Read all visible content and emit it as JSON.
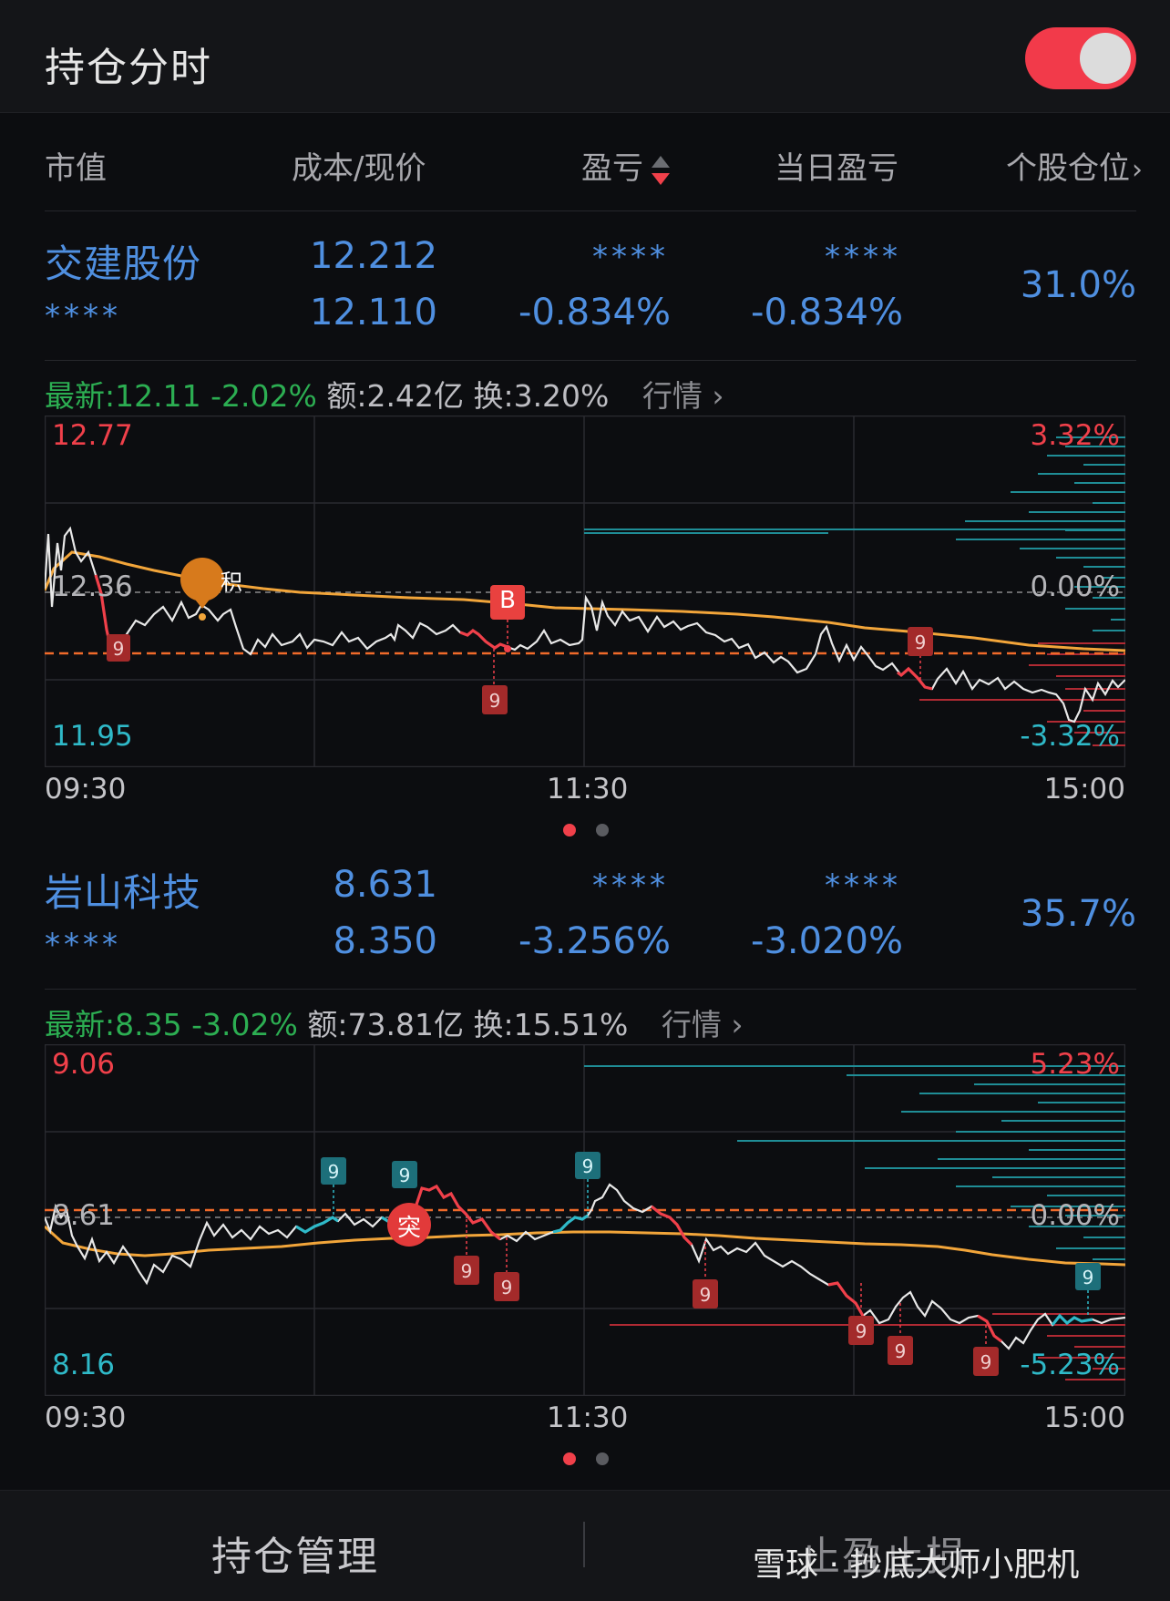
{
  "app": {
    "title": "持仓分时"
  },
  "header": {
    "market_value": "市值",
    "cost_price": "成本/现价",
    "pnl": "盈亏",
    "day_pnl": "当日盈亏",
    "position": "个股仓位"
  },
  "stocks": [
    {
      "name": "交建股份",
      "masked_market_value": "****",
      "cost": "12.212",
      "price": "12.110",
      "pnl_masked": "****",
      "pnl_pct": "-0.834%",
      "day_pnl_masked": "****",
      "day_pnl_pct": "-0.834%",
      "position_pct": "31.0%",
      "quote": {
        "latest": "最新:12.11",
        "change": "-2.02%",
        "amount": "额:2.42亿",
        "turnover": "换:3.20%",
        "link": "行情"
      },
      "chart": {
        "high": "12.77",
        "mid": "12.36",
        "low": "11.95",
        "high_pct": "3.32%",
        "mid_pct": "0.00%",
        "low_pct": "-3.32%",
        "t_start": "09:30",
        "t_mid": "11:30",
        "t_end": "15:00",
        "marker_ji": "积",
        "marker_b": "B"
      }
    },
    {
      "name": "岩山科技",
      "masked_market_value": "****",
      "cost": "8.631",
      "price": "8.350",
      "pnl_masked": "****",
      "pnl_pct": "-3.256%",
      "day_pnl_masked": "****",
      "day_pnl_pct": "-3.020%",
      "position_pct": "35.7%",
      "quote": {
        "latest": "最新:8.35",
        "change": "-3.02%",
        "amount": "额:73.81亿",
        "turnover": "换:15.51%",
        "link": "行情"
      },
      "chart": {
        "high": "9.06",
        "mid": "8.61",
        "low": "8.16",
        "high_pct": "5.23%",
        "mid_pct": "0.00%",
        "low_pct": "-5.23%",
        "t_start": "09:30",
        "t_mid": "11:30",
        "t_end": "15:00",
        "marker_tu": "突"
      }
    }
  ],
  "bottom": {
    "manage": "持仓管理",
    "stop": "止盈止损"
  },
  "watermark": "雪球 · 抄底大师小肥机",
  "colors": {
    "accent_blue": "#4f8fe0",
    "up_red": "#f0404a",
    "down_green": "#2cae52",
    "cyan": "#2fb9c8",
    "avg_orange": "#f2a53a"
  }
}
